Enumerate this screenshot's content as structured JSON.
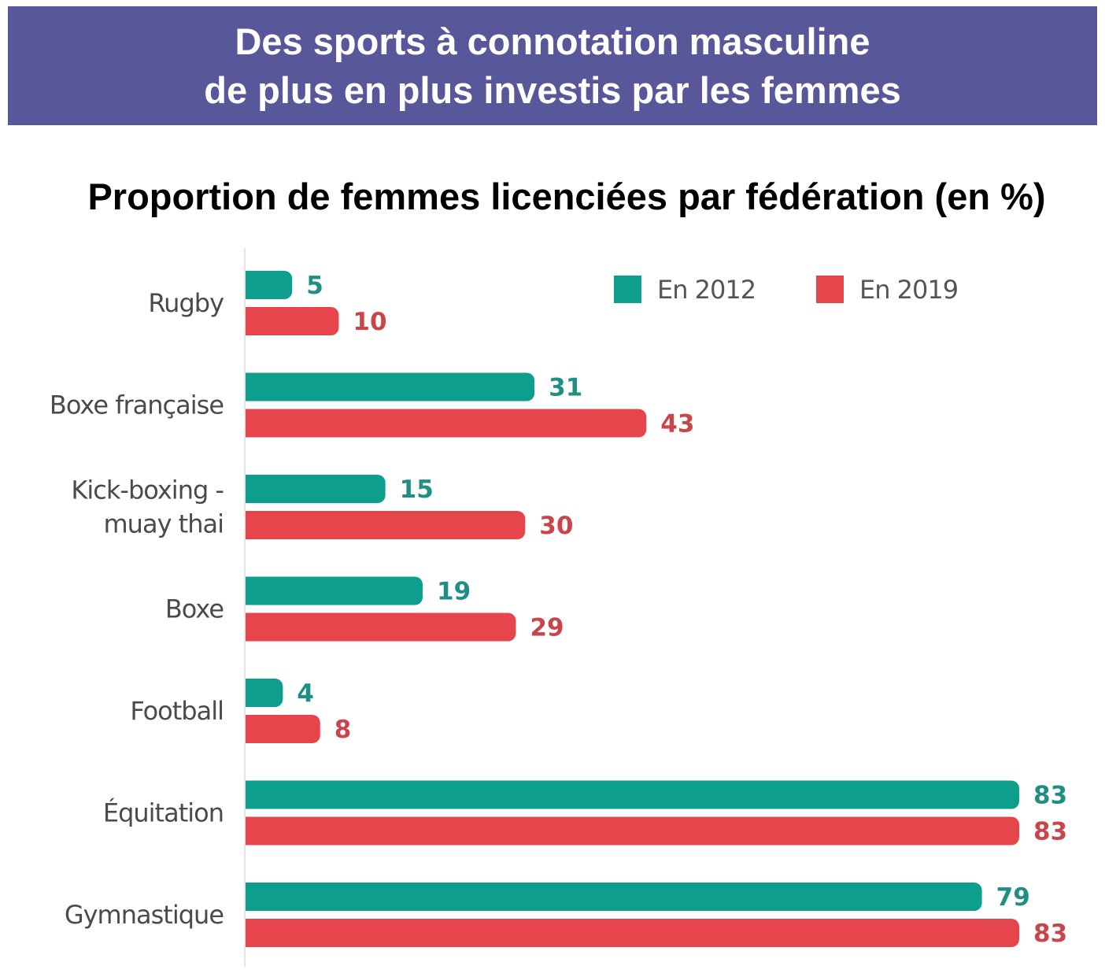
{
  "header": {
    "line1": "Des sports à connotation masculine",
    "line2": "de plus en plus investis par les femmes"
  },
  "chart_data": {
    "type": "bar",
    "orientation": "horizontal",
    "title": "Proportion de femmes licenciées par fédération (en %)",
    "categories": [
      [
        "Rugby"
      ],
      [
        "Boxe française"
      ],
      [
        "Kick-boxing -",
        "muay thai"
      ],
      [
        "Boxe"
      ],
      [
        "Football"
      ],
      [
        "Équitation"
      ],
      [
        "Gymnastique"
      ]
    ],
    "series": [
      {
        "name": "En 2012",
        "color": "#0e9e8e",
        "label_color": "#1f8f84",
        "values": [
          5,
          31,
          15,
          19,
          4,
          83,
          79
        ]
      },
      {
        "name": "En 2019",
        "color": "#e5454b",
        "label_color": "#c9454c",
        "values": [
          10,
          43,
          30,
          29,
          8,
          83,
          83
        ]
      }
    ],
    "xlim": [
      0,
      83
    ],
    "legend_position": "top-right",
    "grid": false
  }
}
